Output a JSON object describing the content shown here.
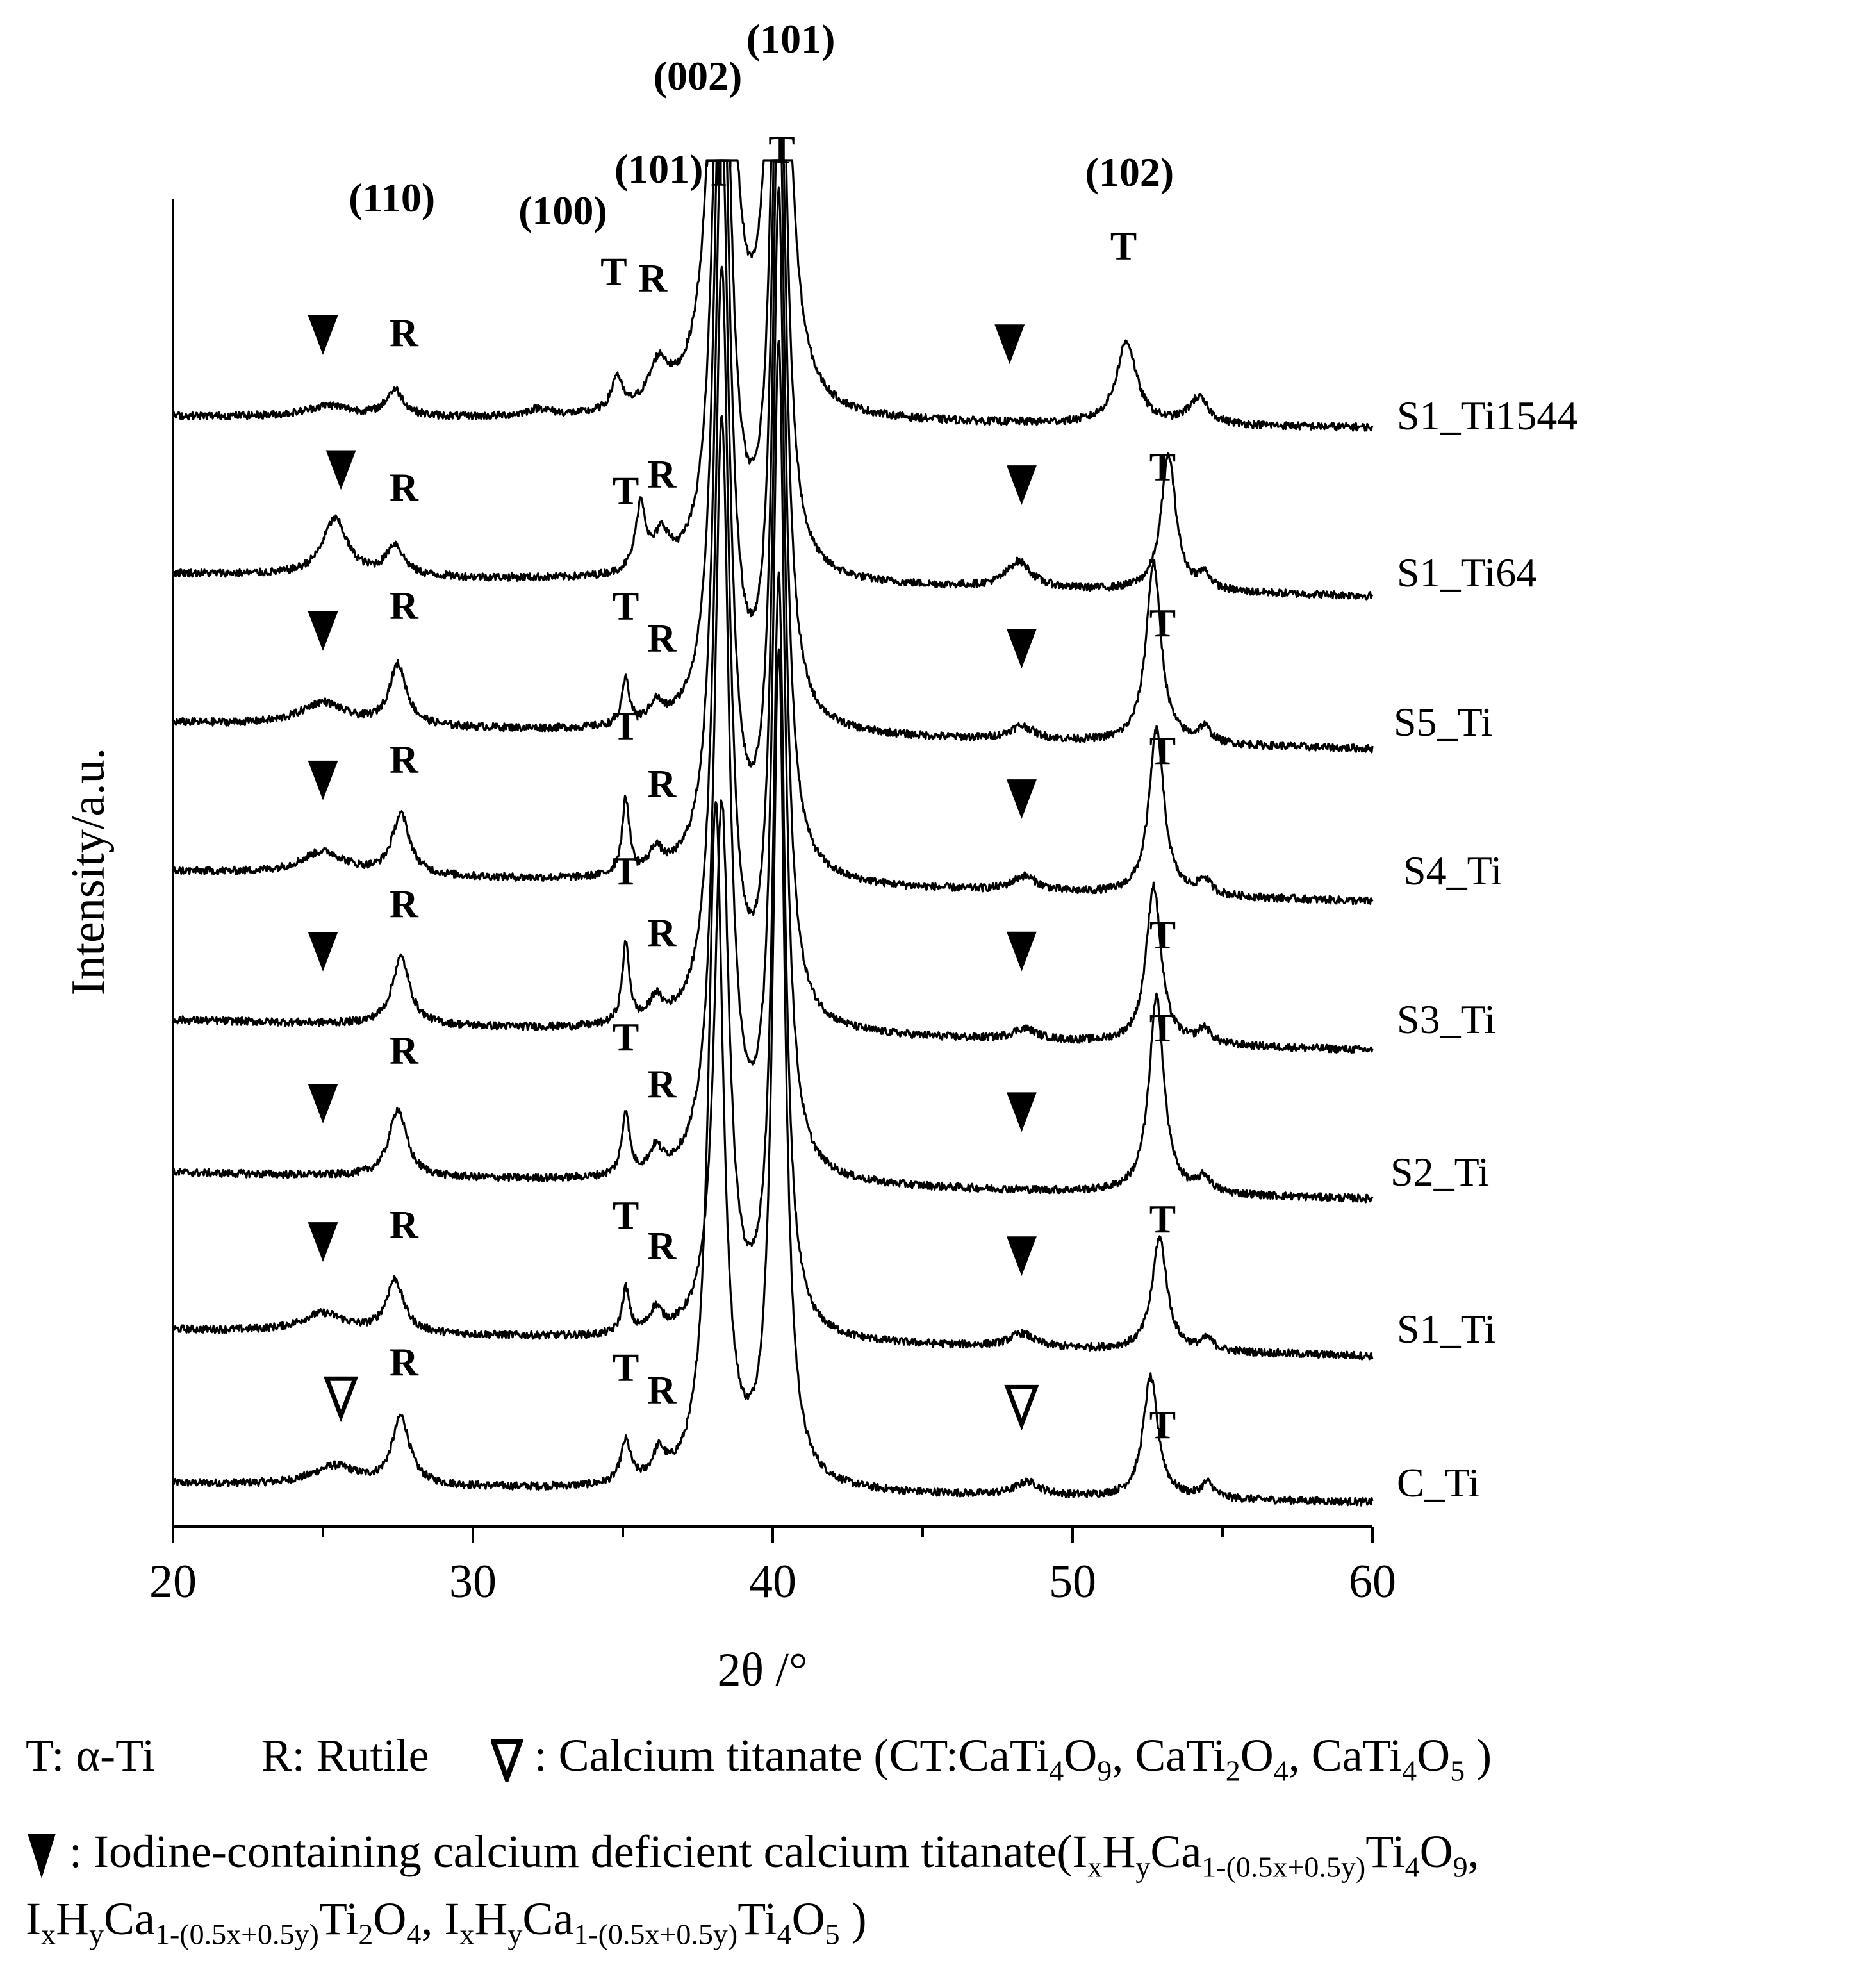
{
  "chart_data": {
    "type": "line",
    "title": "",
    "xlabel": "2θ /°",
    "ylabel": "Intensity/a.u.",
    "xlim": [
      20,
      60
    ],
    "x_ticks": [
      20,
      30,
      40,
      50,
      60
    ],
    "grid": false,
    "legend": "none",
    "line_color": "#000000",
    "marker_shapes": {
      "CT": "open-down-triangle",
      "ICT": "filled-down-triangle"
    },
    "peaks": {
      "ICT": [
        25.0,
        48.3
      ],
      "CT": [
        25.4,
        48.5
      ],
      "R": [
        27.5,
        36.1
      ],
      "T": [
        35.1,
        38.3,
        40.2,
        53.0
      ]
    },
    "series": [
      {
        "name": "C_Ti",
        "baseline": [
          0.85,
          0.6
        ],
        "ct": "CT",
        "peaks": [
          [
            25.4,
            0.25,
            0.9
          ],
          [
            27.6,
            0.9,
            0.35
          ],
          [
            35.1,
            0.55,
            0.2
          ],
          [
            36.2,
            0.35,
            0.25
          ],
          [
            38.1,
            9.0,
            0.3
          ],
          [
            40.2,
            11.0,
            0.25
          ],
          [
            48.5,
            0.18,
            0.5
          ],
          [
            52.6,
            1.6,
            0.3
          ],
          [
            54.5,
            0.2,
            0.25
          ]
        ]
      },
      {
        "name": "S1_Ti",
        "baseline": [
          1.0,
          0.65
        ],
        "ct": "ICT",
        "peaks": [
          [
            25.0,
            0.25,
            0.9
          ],
          [
            27.4,
            0.7,
            0.35
          ],
          [
            35.1,
            0.6,
            0.15
          ],
          [
            36.1,
            0.3,
            0.25
          ],
          [
            38.3,
            7.0,
            0.3
          ],
          [
            40.2,
            10.0,
            0.25
          ],
          [
            48.3,
            0.18,
            0.5
          ],
          [
            52.9,
            1.5,
            0.3
          ],
          [
            54.5,
            0.15,
            0.25
          ]
        ]
      },
      {
        "name": "S2_Ti",
        "baseline": [
          1.05,
          0.7
        ],
        "ct": "ICT",
        "peaks": [
          [
            27.5,
            0.9,
            0.35
          ],
          [
            35.1,
            0.85,
            0.15
          ],
          [
            36.1,
            0.3,
            0.25
          ],
          [
            38.3,
            10.0,
            0.3
          ],
          [
            40.2,
            11.0,
            0.25
          ],
          [
            52.8,
            2.6,
            0.3
          ],
          [
            54.4,
            0.2,
            0.25
          ]
        ]
      },
      {
        "name": "S3_Ti",
        "baseline": [
          1.05,
          0.65
        ],
        "ct": "ICT",
        "peaks": [
          [
            27.6,
            0.9,
            0.35
          ],
          [
            35.1,
            1.05,
            0.15
          ],
          [
            36.1,
            0.3,
            0.25
          ],
          [
            38.3,
            10.0,
            0.3
          ],
          [
            40.2,
            11.0,
            0.25
          ],
          [
            48.4,
            0.15,
            0.5
          ],
          [
            52.7,
            2.1,
            0.3
          ],
          [
            54.4,
            0.2,
            0.25
          ]
        ]
      },
      {
        "name": "S4_Ti",
        "baseline": [
          1.05,
          0.65
        ],
        "ct": "ICT",
        "peaks": [
          [
            25.0,
            0.3,
            0.9
          ],
          [
            27.6,
            0.8,
            0.35
          ],
          [
            35.1,
            1.0,
            0.15
          ],
          [
            36.1,
            0.3,
            0.25
          ],
          [
            38.3,
            10.0,
            0.3
          ],
          [
            40.2,
            11.0,
            0.25
          ],
          [
            48.4,
            0.2,
            0.5
          ],
          [
            52.8,
            2.2,
            0.3
          ],
          [
            54.4,
            0.2,
            0.25
          ]
        ]
      },
      {
        "name": "S5_Ti",
        "baseline": [
          1.0,
          0.65
        ],
        "ct": "ICT",
        "peaks": [
          [
            25.0,
            0.3,
            0.9
          ],
          [
            27.5,
            0.8,
            0.35
          ],
          [
            35.1,
            0.6,
            0.15
          ],
          [
            36.1,
            0.25,
            0.25
          ],
          [
            38.3,
            10.0,
            0.3
          ],
          [
            40.2,
            11.0,
            0.25
          ],
          [
            48.3,
            0.18,
            0.5
          ],
          [
            52.7,
            2.4,
            0.3
          ],
          [
            54.4,
            0.2,
            0.25
          ]
        ]
      },
      {
        "name": "S1_Ti64",
        "baseline": [
          1.0,
          0.7
        ],
        "ct": "ICT",
        "peaks": [
          [
            25.4,
            0.75,
            0.5
          ],
          [
            27.4,
            0.4,
            0.35
          ],
          [
            35.6,
            0.9,
            0.2
          ],
          [
            36.3,
            0.45,
            0.3
          ],
          [
            38.3,
            10.0,
            0.3
          ],
          [
            40.2,
            11.0,
            0.25
          ],
          [
            48.2,
            0.35,
            0.5
          ],
          [
            53.2,
            1.8,
            0.3
          ],
          [
            54.4,
            0.2,
            0.25
          ]
        ]
      },
      {
        "name": "S1_Ti1544",
        "baseline": [
          0.7,
          0.55
        ],
        "ct": "ICT",
        "peaks": [
          [
            25.2,
            0.15,
            0.9
          ],
          [
            27.4,
            0.35,
            0.35
          ],
          [
            32.2,
            0.1,
            0.5
          ],
          [
            34.8,
            0.45,
            0.2
          ],
          [
            36.2,
            0.55,
            0.4
          ],
          [
            38.3,
            10.0,
            0.35
          ],
          [
            40.2,
            11.0,
            0.3
          ],
          [
            51.8,
            1.1,
            0.4
          ],
          [
            54.2,
            0.35,
            0.4
          ]
        ]
      }
    ]
  },
  "peak_labels": {
    "hkl_110": "(110)",
    "hkl_100": "(100)",
    "hkl_101a": "(101)",
    "hkl_002": "(002)",
    "hkl_101b": "(101)",
    "hkl_102": "(102)",
    "T": "T",
    "R": "R"
  },
  "legend": {
    "t_text": "T: α-Ti",
    "r_text": "R: Rutile",
    "ct_prefix": ": Calcium  titanate  (CT:CaTi",
    "ct_formula_html": ": Calcium  titanate  (CT:CaTi<sub>4</sub>O<sub>9</sub>,  CaTi<sub>2</sub>O<sub>4</sub>,  CaTi<sub>4</sub>O<sub>5</sub> )",
    "ict_line1_html": ": Iodine-containing  calcium  deficient  calcium  titanate(I<sub>x</sub>H<sub>y</sub>Ca<sub>1-(0.5x+0.5y)</sub>Ti<sub>4</sub>O<sub>9</sub>,",
    "ict_line2_html": "I<sub>x</sub>H<sub>y</sub>Ca<sub>1-(0.5x+0.5y)</sub>Ti<sub>2</sub>O<sub>4</sub>,  I<sub>x</sub>H<sub>y</sub>Ca<sub>1-(0.5x+0.5y)</sub>Ti<sub>4</sub>O<sub>5</sub>  )"
  }
}
